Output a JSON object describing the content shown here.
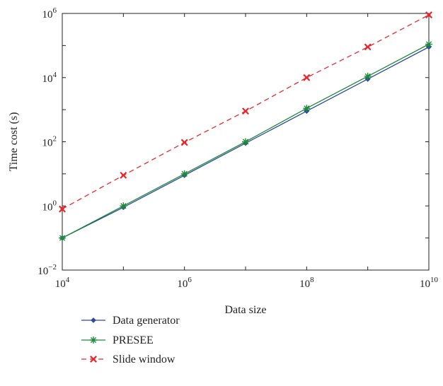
{
  "chart_data": {
    "type": "line",
    "xlabel": "Data size",
    "ylabel": "Time cost (s)",
    "x_scale": "log",
    "y_scale": "log",
    "xlim": [
      10000,
      10000000000
    ],
    "ylim": [
      0.01,
      1000000
    ],
    "x_ticks": [
      {
        "value": 10000,
        "base": "10",
        "exp": "4"
      },
      {
        "value": 1000000,
        "base": "10",
        "exp": "6"
      },
      {
        "value": 100000000,
        "base": "10",
        "exp": "8"
      },
      {
        "value": 10000000000,
        "base": "10",
        "exp": "10"
      }
    ],
    "y_ticks": [
      {
        "value": 0.01,
        "base": "10",
        "exp": "−2"
      },
      {
        "value": 1,
        "base": "10",
        "exp": "0"
      },
      {
        "value": 100,
        "base": "10",
        "exp": "2"
      },
      {
        "value": 10000,
        "base": "10",
        "exp": "4"
      },
      {
        "value": 1000000,
        "base": "10",
        "exp": "6"
      }
    ],
    "grid": false,
    "legend_position": "bottom",
    "x": [
      10000,
      100000,
      1000000,
      10000000,
      100000000,
      1000000000,
      10000000000
    ],
    "series": [
      {
        "name": "Data generator",
        "color": "#2e4a9b",
        "marker": "diamond",
        "dash": "solid",
        "values": [
          0.1,
          0.9,
          9,
          90,
          900,
          9000,
          90000
        ]
      },
      {
        "name": "PRESEE",
        "color": "#1f8a3a",
        "marker": "asterisk",
        "dash": "solid",
        "values": [
          0.1,
          1.0,
          10,
          100,
          1100,
          11000,
          110000
        ]
      },
      {
        "name": "Slide window",
        "color": "#e8282d",
        "marker": "x-star",
        "dash": "dashed",
        "values": [
          0.8,
          9,
          95,
          900,
          10000,
          90000,
          900000
        ]
      }
    ]
  }
}
